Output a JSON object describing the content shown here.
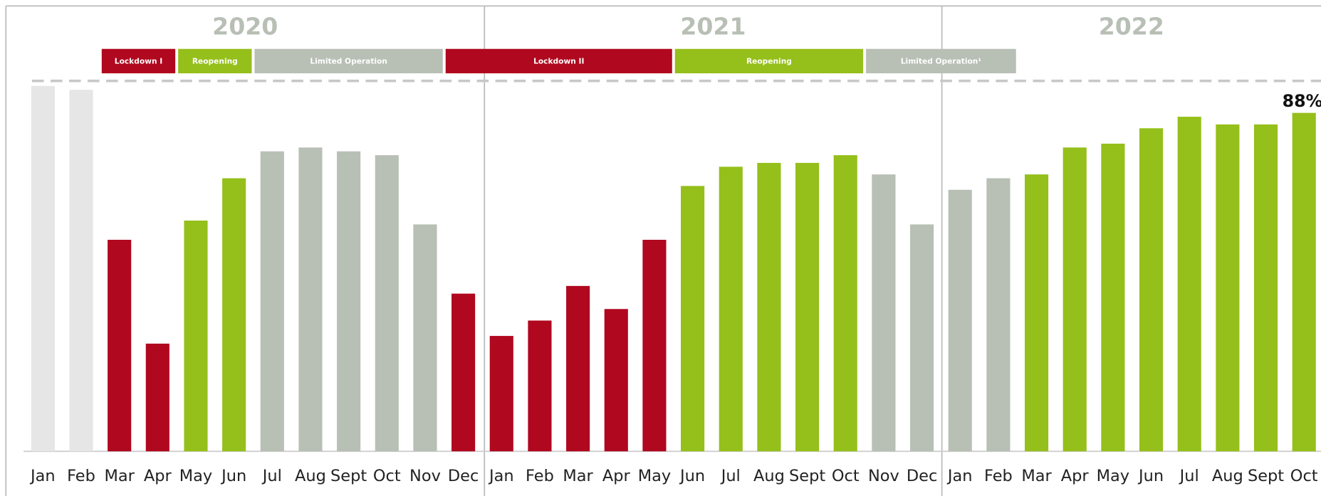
{
  "chart_data": {
    "type": "bar",
    "categories": [
      "Jan",
      "Feb",
      "Mar",
      "Apr",
      "May",
      "Jun",
      "Jul",
      "Aug",
      "Sept",
      "Oct",
      "Nov",
      "Dec",
      "Jan",
      "Feb",
      "Mar",
      "Apr",
      "May",
      "Jun",
      "Jul",
      "Aug",
      "Sept",
      "Oct",
      "Nov",
      "Dec",
      "Jan",
      "Feb",
      "Mar",
      "Apr",
      "May",
      "Jun",
      "Jul",
      "Aug",
      "Sept",
      "Oct"
    ],
    "values": [
      95,
      94,
      55,
      28,
      60,
      71,
      78,
      79,
      78,
      77,
      59,
      41,
      30,
      34,
      43,
      37,
      55,
      69,
      74,
      75,
      75,
      77,
      72,
      59,
      68,
      71,
      72,
      79,
      80,
      84,
      87,
      85,
      85,
      88
    ],
    "value_labels": [
      null,
      null,
      null,
      null,
      null,
      null,
      null,
      null,
      null,
      null,
      null,
      null,
      null,
      null,
      null,
      null,
      null,
      null,
      null,
      null,
      null,
      null,
      null,
      null,
      null,
      null,
      null,
      null,
      null,
      null,
      null,
      null,
      null,
      "88%"
    ],
    "colors": [
      "#e6e6e6",
      "#e6e6e6",
      "#b0081f",
      "#b0081f",
      "#95bf1a",
      "#95bf1a",
      "#b8bfb5",
      "#b8bfb5",
      "#b8bfb5",
      "#b8bfb5",
      "#b8bfb5",
      "#b0081f",
      "#b0081f",
      "#b0081f",
      "#b0081f",
      "#b0081f",
      "#b0081f",
      "#95bf1a",
      "#95bf1a",
      "#95bf1a",
      "#95bf1a",
      "#95bf1a",
      "#b8bfb5",
      "#b8bfb5",
      "#b8bfb5",
      "#b8bfb5",
      "#95bf1a",
      "#95bf1a",
      "#95bf1a",
      "#95bf1a",
      "#95bf1a",
      "#95bf1a",
      "#95bf1a",
      "#95bf1a"
    ],
    "years": [
      "2020",
      "2021",
      "2022"
    ],
    "phases": [
      {
        "label": "Lockdown I",
        "color": "#b0081f"
      },
      {
        "label": "Reopening",
        "color": "#95bf1a"
      },
      {
        "label": "Limited Operation",
        "color": "#b8bfb5"
      },
      {
        "label": "Lockdown II",
        "color": "#b0081f"
      },
      {
        "label": "Reopening",
        "color": "#95bf1a"
      },
      {
        "label": "Limited Operation¹",
        "color": "#b8bfb5"
      }
    ],
    "ylim": [
      0,
      100
    ]
  }
}
